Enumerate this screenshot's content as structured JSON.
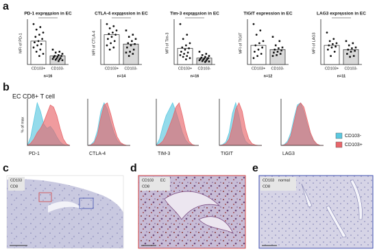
{
  "panel_a": {
    "label": "a",
    "categories": [
      "CD103+",
      "CD103-"
    ],
    "ylim": [
      0,
      100
    ],
    "charts": [
      {
        "title": "PD-1 expression in EC",
        "ylabel": "MFI of PD-1",
        "n": "n=16",
        "significance": "****",
        "values": [
          55,
          20
        ],
        "points": [
          [
            95,
            88,
            82,
            75,
            70,
            65,
            60,
            55,
            52,
            48,
            45,
            40,
            35,
            30,
            25,
            20
          ],
          [
            35,
            30,
            28,
            25,
            22,
            20,
            20,
            18,
            17,
            15,
            14,
            13,
            12,
            11,
            10,
            8
          ]
        ]
      },
      {
        "title": "CTLA-4 expression in EC",
        "ylabel": "MFI of CTLA-4",
        "n": "n=14",
        "significance": "***",
        "values": [
          70,
          48
        ],
        "points": [
          [
            95,
            90,
            85,
            80,
            75,
            72,
            70,
            65,
            60,
            55,
            50,
            45,
            40,
            35
          ],
          [
            80,
            70,
            65,
            60,
            55,
            50,
            48,
            45,
            40,
            35,
            30,
            28,
            25,
            20
          ]
        ]
      },
      {
        "title": "Tim-3 expression in EC",
        "ylabel": "MFI of Tim-3",
        "n": "n=16",
        "significance": "****",
        "values": [
          38,
          15
        ],
        "points": [
          [
            95,
            70,
            60,
            50,
            45,
            40,
            38,
            35,
            30,
            28,
            25,
            22,
            20,
            18,
            15,
            12
          ],
          [
            30,
            25,
            22,
            20,
            18,
            16,
            15,
            14,
            13,
            12,
            11,
            10,
            9,
            8,
            7,
            6
          ]
        ]
      },
      {
        "title": "TIGIT expression in EC",
        "ylabel": "MFI of TIGIT",
        "n": "n=12",
        "significance": null,
        "values": [
          45,
          35
        ],
        "points": [
          [
            95,
            80,
            70,
            55,
            50,
            45,
            40,
            35,
            30,
            25,
            20,
            15
          ],
          [
            65,
            55,
            45,
            40,
            38,
            35,
            33,
            30,
            28,
            25,
            22,
            20
          ]
        ]
      },
      {
        "title": "LAG3 expression in EC",
        "ylabel": "MFI of LAG3",
        "n": "n=11",
        "significance": "*",
        "values": [
          45,
          35
        ],
        "points": [
          [
            75,
            60,
            55,
            50,
            48,
            45,
            42,
            40,
            35,
            30,
            20
          ],
          [
            55,
            50,
            45,
            40,
            38,
            35,
            32,
            30,
            25,
            20,
            18
          ]
        ]
      }
    ]
  },
  "panel_b": {
    "label": "b",
    "title": "EC CD8+ T cell",
    "ylabel": "% of max",
    "ylim": [
      0,
      100
    ],
    "series": [
      {
        "name": "CD103-",
        "color": "#5bc8e0"
      },
      {
        "name": "CD103+",
        "color": "#e8666a"
      }
    ],
    "charts": [
      {
        "marker": "PD-1",
        "values": [
          [
            0,
            20,
            60,
            100,
            80,
            50,
            40,
            45,
            35,
            20,
            8,
            2,
            0,
            0
          ],
          [
            0,
            5,
            15,
            30,
            40,
            55,
            75,
            95,
            90,
            70,
            40,
            15,
            3,
            0
          ]
        ]
      },
      {
        "marker": "CTLA-4",
        "values": [
          [
            0,
            2,
            10,
            35,
            80,
            100,
            85,
            55,
            30,
            12,
            4,
            1,
            0,
            0
          ],
          [
            0,
            1,
            6,
            25,
            65,
            95,
            100,
            75,
            45,
            20,
            7,
            2,
            0,
            0
          ]
        ]
      },
      {
        "marker": "TIM-3",
        "values": [
          [
            0,
            15,
            45,
            70,
            85,
            100,
            80,
            55,
            30,
            12,
            4,
            1,
            0,
            0
          ],
          [
            0,
            3,
            10,
            25,
            45,
            65,
            90,
            100,
            70,
            35,
            10,
            2,
            0,
            0
          ]
        ]
      },
      {
        "marker": "TIGIT",
        "values": [
          [
            0,
            2,
            8,
            30,
            75,
            100,
            70,
            30,
            10,
            3,
            1,
            0,
            0,
            0
          ],
          [
            0,
            1,
            4,
            15,
            45,
            85,
            100,
            80,
            40,
            15,
            4,
            1,
            0,
            0
          ]
        ]
      },
      {
        "marker": "LAG3",
        "values": [
          [
            0,
            2,
            10,
            30,
            65,
            95,
            100,
            80,
            50,
            25,
            10,
            3,
            0,
            0
          ],
          [
            0,
            1,
            6,
            22,
            55,
            90,
            100,
            90,
            60,
            30,
            12,
            3,
            0,
            0
          ]
        ]
      }
    ]
  },
  "panel_c": {
    "label": "c",
    "stain": "CD103",
    "cells": "CD8"
  },
  "panel_d": {
    "label": "d",
    "stain": "CD103",
    "tissue": "EC",
    "cells": "CD8"
  },
  "panel_e": {
    "label": "e",
    "stain": "CD103",
    "tissue": "normal",
    "cells": "CD8"
  }
}
